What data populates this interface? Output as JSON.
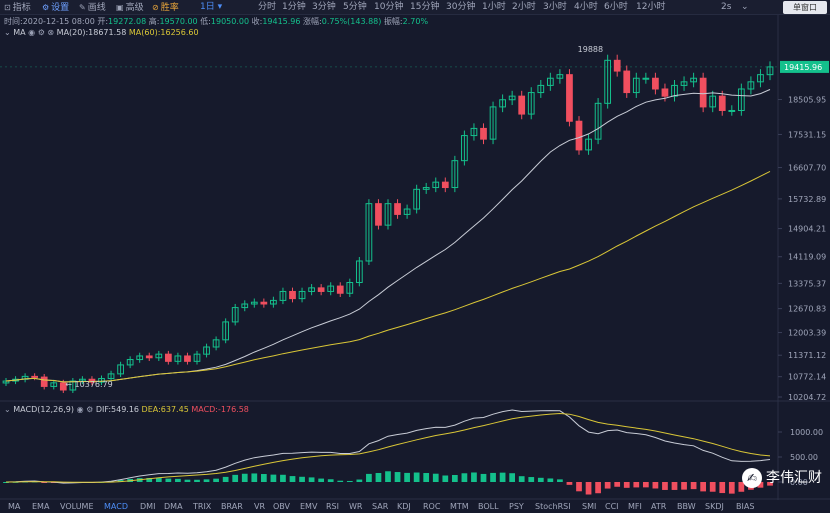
{
  "toolbar": {
    "items": [
      {
        "icon": "indicator-icon",
        "label": "指标"
      },
      {
        "icon": "settings-icon",
        "label": "设置"
      },
      {
        "icon": "draw-line-icon",
        "label": "画线"
      },
      {
        "icon": "advanced-icon",
        "label": "高级"
      },
      {
        "icon": "win-rate-icon",
        "label": "胜率"
      }
    ],
    "active_interval": "1日",
    "intervals": [
      "分时",
      "1分钟",
      "3分钟",
      "5分钟",
      "10分钟",
      "15分钟",
      "30分钟",
      "1小时",
      "2小时",
      "3小时",
      "4小时",
      "6小时",
      "12小时"
    ],
    "refresh": "2s",
    "window_mode": "单窗口"
  },
  "ohlc": {
    "time": "时间:2020-12-15 08:00",
    "open_label": "开:",
    "open": "19272.08",
    "high_label": "高:",
    "high": "19570.00",
    "low_label": "低:",
    "low": "19050.00",
    "close_label": "收:",
    "close": "19415.96",
    "change_label": "涨幅:",
    "change": "0.75%(143.88)",
    "amplitude_label": "振幅:",
    "amplitude": "2.70%"
  },
  "ma_legend": {
    "name": "MA",
    "ma20": "MA(20):18671.58",
    "ma60": "MA(60):16256.60"
  },
  "macd_legend": {
    "name": "MACD(12,26,9)",
    "dif": "DIF:549.16",
    "dea": "DEA:637.45",
    "macd": "MACD:-176.58"
  },
  "annotations": {
    "high": "19888",
    "low": "10376.79"
  },
  "price_axis": [
    "18505.95",
    "17531.15",
    "16607.70",
    "15732.89",
    "14904.21",
    "14119.09",
    "13375.37",
    "12670.83",
    "12003.39",
    "11371.12",
    "10772.14",
    "10204.72"
  ],
  "current_price": "19415.96",
  "macd_axis": [
    "1000.00",
    "500.00",
    "0.00"
  ],
  "indicator_tabs": [
    "MA",
    "EMA",
    "VOLUME",
    "MACD",
    "DMI",
    "DMA",
    "TRIX",
    "BRAR",
    "VR",
    "OBV",
    "EMV",
    "RSI",
    "WR",
    "SAR",
    "KDJ",
    "ROC",
    "MTM",
    "BOLL",
    "PSY",
    "StochRSI",
    "SMI",
    "CCI",
    "MFI",
    "ATR",
    "BBW",
    "SKDJ",
    "BIAS"
  ],
  "active_indicator": "MACD",
  "watermark": "李伟汇财",
  "colors": {
    "up": "#14c08c",
    "down": "#f04f5f",
    "ma20": "#c8ccd6",
    "ma60": "#d9c637",
    "accent": "#4d8ef7",
    "background": "#161a2c"
  },
  "chart_data": {
    "type": "candlestick",
    "series_close": [
      10650,
      10700,
      10780,
      10760,
      10500,
      10600,
      10400,
      10650,
      10700,
      10620,
      10720,
      10850,
      11100,
      11250,
      11350,
      11300,
      11400,
      11200,
      11350,
      11200,
      11400,
      11600,
      11800,
      12300,
      12700,
      12800,
      12850,
      12800,
      12900,
      13150,
      12950,
      13150,
      13250,
      13150,
      13300,
      13100,
      13400,
      14000,
      15600,
      15000,
      15600,
      15300,
      15450,
      16000,
      16050,
      16200,
      16050,
      16800,
      17500,
      17700,
      17400,
      18300,
      18500,
      18600,
      18100,
      18700,
      18900,
      19100,
      19200,
      17900,
      17100,
      17400,
      18400,
      19600,
      19300,
      18700,
      19100,
      19100,
      18800,
      18600,
      18900,
      19000,
      19100,
      18300,
      18600,
      18200,
      18200,
      18800,
      19000,
      19200,
      19416
    ],
    "ma20_last": 18671.58,
    "ma60_last": 16256.6,
    "ylim": [
      10204.72,
      19888
    ]
  }
}
